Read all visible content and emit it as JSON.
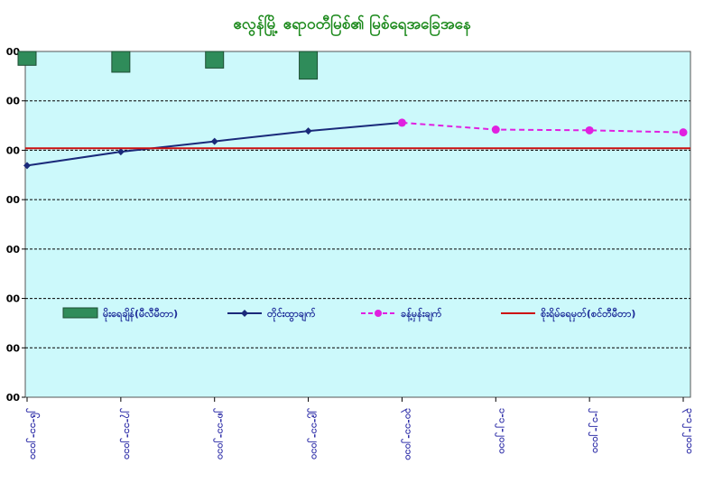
{
  "chart_data": {
    "type": "bar+line",
    "title": "ဧလွန်မြို့ ဧရာဝတီမြစ်၏ မြစ်ရေအခြေအနေ",
    "grid": true,
    "legend_position": "center-left",
    "plot_background": "#ccf9fb",
    "y_tick_labels": [
      "00",
      "00",
      "00",
      "00",
      "00",
      "00",
      "00",
      "00"
    ],
    "categories": [
      "၂၆-၁၁-၂၀၁၀",
      "၂၇-၁၁-၂၀၁၀",
      "၂၈-၁၁-၂၀၁၀",
      "၂၉-၁၁-၂၀၁၀",
      "၃၀-၁၁-၂၀၁၀",
      "၁-၁၂-၂၀၁၀",
      "၂-၁၂-၂၀၁၀",
      "၃-၁၂-၂၀၁၀"
    ],
    "series": [
      {
        "name": "မိုးရေချိန်(မီလီမီတာ)",
        "type": "bar",
        "color": "#2f8c5a",
        "values": [
          10,
          15,
          12,
          20,
          null,
          null,
          null,
          null
        ]
      },
      {
        "name": "တိုင်းထွာချက်",
        "type": "line",
        "color": "#1a2a7a",
        "values": [
          335,
          355,
          370,
          385,
          397,
          null,
          null,
          null
        ]
      },
      {
        "name": "ခန့်မှန်းချက်",
        "type": "line",
        "style": "dashed",
        "color": "#e020e0",
        "values": [
          null,
          null,
          null,
          null,
          397,
          387,
          386,
          383
        ]
      },
      {
        "name": "စိုးရိမ်ရေမှတ်(စင်တီမီတာ)",
        "type": "line",
        "color": "#cc1010",
        "values": [
          360,
          360,
          360,
          360,
          360,
          360,
          360,
          360
        ]
      }
    ],
    "ylim_bars_top_down": [
      0,
      250
    ],
    "ylim_lines": [
      0,
      500
    ]
  }
}
